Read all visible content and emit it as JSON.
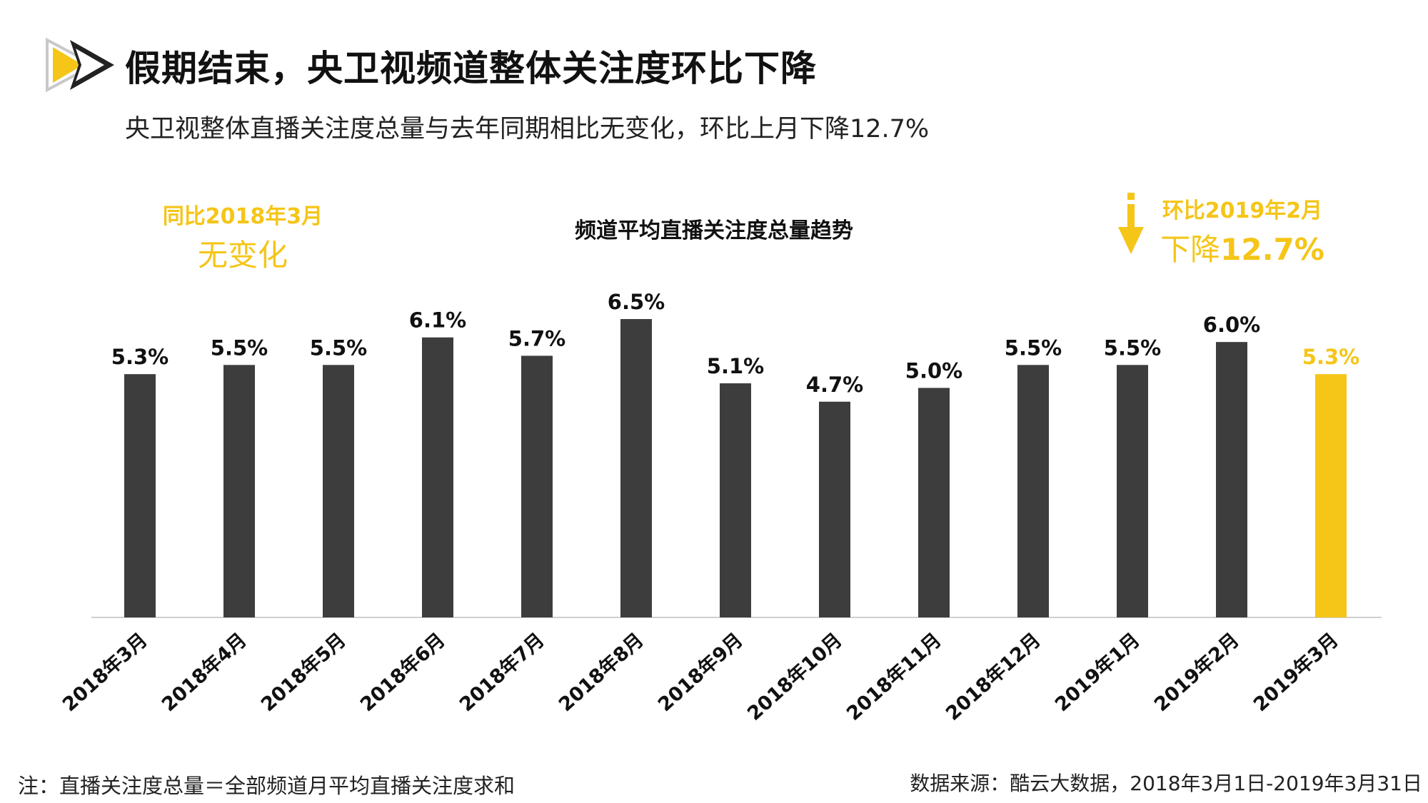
{
  "header": {
    "title": "假期结束，央卫视频道整体关注度环比下降",
    "subtitle": "央卫视整体直播关注度总量与去年同期相比无变化，环比上月下降12.7%"
  },
  "callouts": {
    "yoy": {
      "label": "同比2018年3月",
      "value": "无变化"
    },
    "mom": {
      "label": "环比2019年2月",
      "value_prefix": "下降",
      "value": "12.7%"
    }
  },
  "colors": {
    "bar": "#3d3d3d",
    "highlight": "#F5C518",
    "axis": "#cfcfcf"
  },
  "chart_data": {
    "type": "bar",
    "title": "频道平均直播关注度总量趋势",
    "categories": [
      "2018年3月",
      "2018年4月",
      "2018年5月",
      "2018年6月",
      "2018年7月",
      "2018年8月",
      "2018年9月",
      "2018年10月",
      "2018年11月",
      "2018年12月",
      "2019年1月",
      "2019年2月",
      "2019年3月"
    ],
    "values": [
      5.3,
      5.5,
      5.5,
      6.1,
      5.7,
      6.5,
      5.1,
      4.7,
      5.0,
      5.5,
      5.5,
      6.0,
      5.3
    ],
    "value_labels": [
      "5.3%",
      "5.5%",
      "5.5%",
      "6.1%",
      "5.7%",
      "6.5%",
      "5.1%",
      "4.7%",
      "5.0%",
      "5.5%",
      "5.5%",
      "6.0%",
      "5.3%"
    ],
    "highlight_index": 12,
    "ylim": [
      0,
      6.5
    ],
    "grid": false,
    "legend": "none"
  },
  "footer": {
    "note": "注：直播关注度总量＝全部频道月平均直播关注度求和",
    "source": "数据来源：酷云大数据，2018年3月1日-2019年3月31日"
  }
}
